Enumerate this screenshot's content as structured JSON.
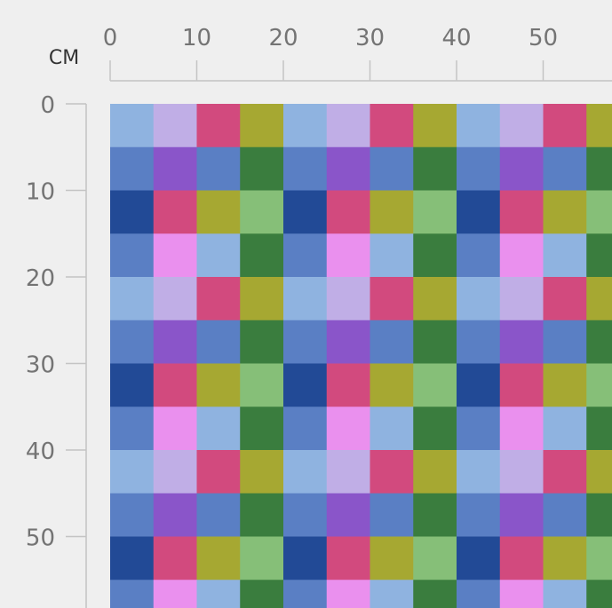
{
  "ruler": {
    "unit": "CM",
    "x_ticks": [
      0,
      10,
      20,
      30,
      40,
      50
    ],
    "y_ticks": [
      0,
      10,
      20,
      30,
      40,
      50
    ]
  },
  "pattern": {
    "tile": [
      [
        "#8fb3e0",
        "#c0aee6",
        "#d24a7e",
        "#a6a832"
      ],
      [
        "#5a7fc4",
        "#8a55c9",
        "#5a7fc4",
        "#3a7d3e"
      ],
      [
        "#224a96",
        "#d24a7e",
        "#a6a832",
        "#86bf78"
      ],
      [
        "#5a7fc4",
        "#ea90ee",
        "#8fb3e0",
        "#3a7d3e"
      ]
    ]
  }
}
